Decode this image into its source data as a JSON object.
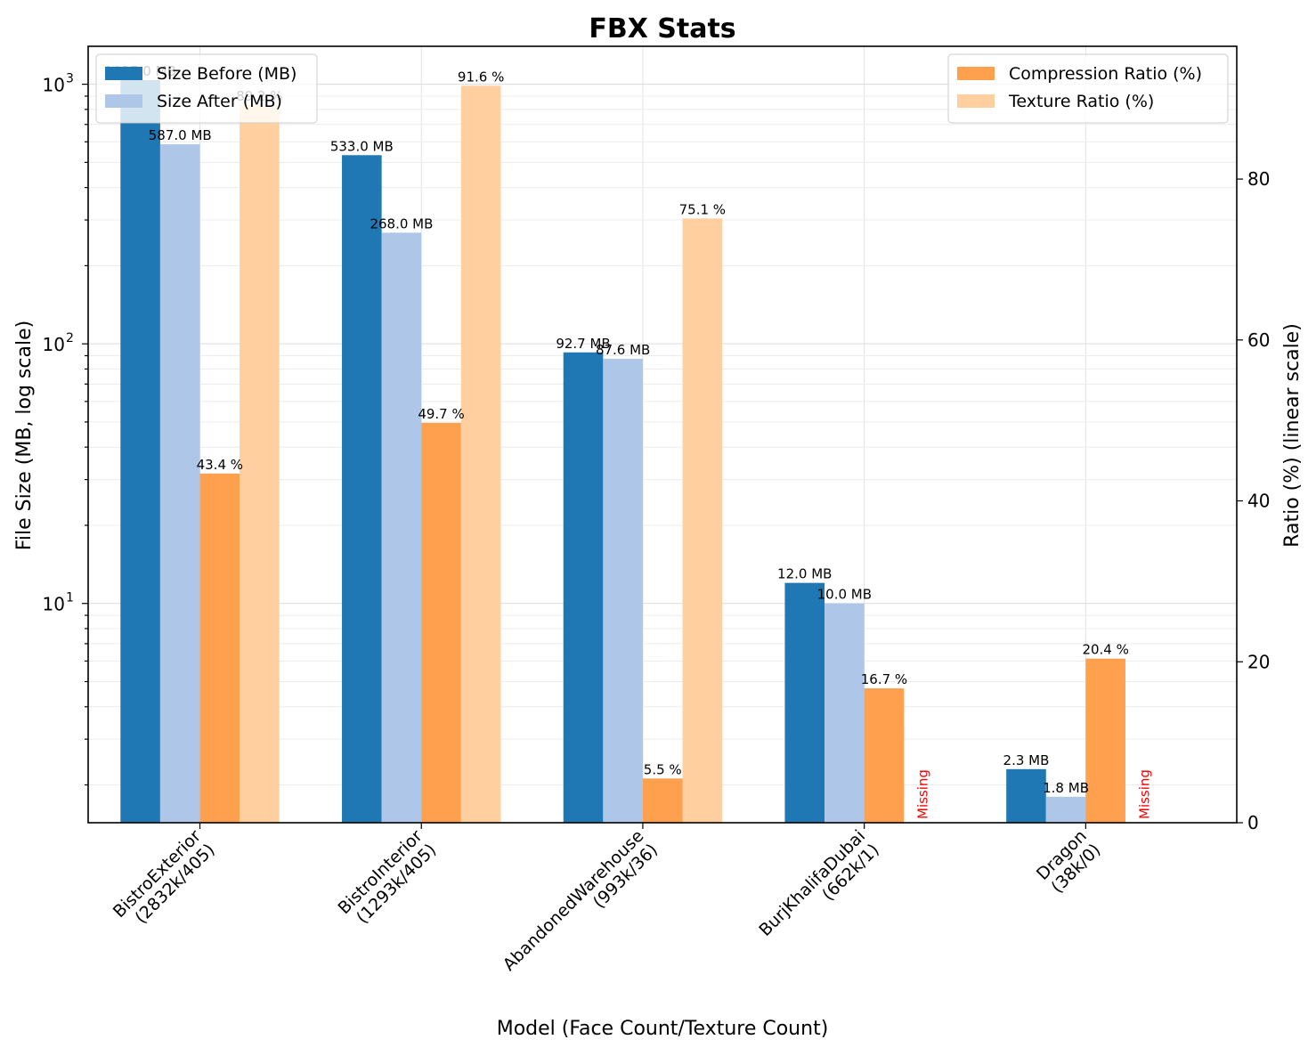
{
  "chart_data": {
    "type": "bar",
    "title": "FBX Stats",
    "xlabel": "Model (Face Count/Texture Count)",
    "ylabel_left": "File Size (MB, log scale)",
    "ylabel_right": "Ratio (%) (linear scale)",
    "categories": [
      [
        "BistroExterior",
        "(2832k/405)"
      ],
      [
        "BistroInterior",
        "(1293k/405)"
      ],
      [
        "AbandonedWarehouse",
        "(993k/36)"
      ],
      [
        "BurjKhalifaDubai",
        "(662k/1)"
      ],
      [
        "Dragon",
        "(38k/0)"
      ]
    ],
    "y_left": {
      "scale": "log",
      "range": [
        1.43,
        1400
      ],
      "ticks": [
        1,
        2,
        3
      ],
      "tick_labels": [
        "10",
        "10",
        "10"
      ],
      "tick_exponents": [
        "1",
        "2",
        "3"
      ]
    },
    "y_right": {
      "scale": "linear",
      "range": [
        0,
        96.5
      ],
      "ticks": [
        0,
        20,
        40,
        60,
        80
      ],
      "tick_labels": [
        "0",
        "20",
        "40",
        "60",
        "80"
      ]
    },
    "grid": true,
    "series": [
      {
        "name": "Size Before (MB)",
        "axis": "left",
        "color": "#1f77b4",
        "values": [
          1037.0,
          533.0,
          92.7,
          12.0,
          2.3
        ],
        "labels": [
          "1037.0 MB",
          "533.0 MB",
          "92.7 MB",
          "12.0 MB",
          "2.3 MB"
        ]
      },
      {
        "name": "Size After (MB)",
        "axis": "left",
        "color": "#aec7e8",
        "values": [
          587.0,
          268.0,
          87.6,
          10.0,
          1.8
        ],
        "labels": [
          "587.0 MB",
          "268.0 MB",
          "87.6 MB",
          "10.0 MB",
          "1.8 MB"
        ]
      },
      {
        "name": "Compression Ratio (%)",
        "axis": "right",
        "color": "#ffa04f",
        "values": [
          43.4,
          49.7,
          5.5,
          16.7,
          20.4
        ],
        "labels": [
          "43.4 %",
          "49.7 %",
          "5.5 %",
          "16.7 %",
          "20.4 %"
        ]
      },
      {
        "name": "Texture Ratio (%)",
        "axis": "right",
        "color": "#ffcf9f",
        "values": [
          89.2,
          91.6,
          75.1,
          null,
          null
        ],
        "labels": [
          "89.2 %",
          "91.6 %",
          "75.1 %",
          "Missing",
          "Missing"
        ]
      }
    ],
    "missing_color": "#ff0000",
    "legend_left_placement": "top-left",
    "legend_right_placement": "top-right"
  }
}
